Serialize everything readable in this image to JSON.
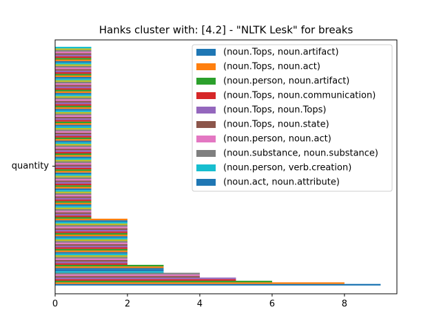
{
  "chart_data": {
    "type": "barh",
    "title": "Hanks cluster with: [4.2] - \"NLTK Lesk\" for breaks",
    "categories": [
      "quantity"
    ],
    "xlim": [
      0,
      9.45
    ],
    "xticks": [
      0,
      2,
      4,
      6,
      8
    ],
    "legend": "upper right",
    "colors": [
      "#1f77b4",
      "#ff7f0e",
      "#2ca02c",
      "#d62728",
      "#9467bd",
      "#8c564b",
      "#e377c2",
      "#7f7f7f",
      "#bcbd22",
      "#17becf"
    ],
    "series": [
      {
        "name": "(noun.Tops, noun.artifact)",
        "color": "#1f77b4",
        "values": [
          9
        ]
      },
      {
        "name": "(noun.Tops, noun.act)",
        "color": "#ff7f0e",
        "values": [
          8
        ]
      },
      {
        "name": "(noun.person, noun.artifact)",
        "color": "#2ca02c",
        "values": [
          6
        ]
      },
      {
        "name": "(noun.Tops, noun.communication)",
        "color": "#d62728",
        "values": [
          5
        ]
      },
      {
        "name": "(noun.Tops, noun.Tops)",
        "color": "#9467bd",
        "values": [
          5
        ]
      },
      {
        "name": "(noun.Tops, noun.state)",
        "color": "#8c564b",
        "values": [
          4
        ]
      },
      {
        "name": "(noun.person, noun.act)",
        "color": "#e377c2",
        "values": [
          4
        ]
      },
      {
        "name": "(noun.substance, noun.substance)",
        "color": "#7f7f7f",
        "values": [
          4
        ]
      },
      {
        "name": "(noun.person, verb.creation)",
        "color": "#17becf",
        "values": [
          3
        ]
      },
      {
        "name": "(noun.act, noun.attribute)",
        "color": "#1f77b4",
        "values": [
          3
        ]
      },
      {
        "values": [
          3
        ]
      },
      {
        "values": [
          3
        ]
      },
      {
        "values": [
          3
        ]
      },
      {
        "values": [
          2
        ]
      },
      {
        "values": [
          2
        ]
      },
      {
        "values": [
          2
        ]
      },
      {
        "values": [
          2
        ]
      },
      {
        "values": [
          2
        ]
      },
      {
        "values": [
          2
        ]
      },
      {
        "values": [
          2
        ]
      },
      {
        "values": [
          2
        ]
      },
      {
        "values": [
          2
        ]
      },
      {
        "values": [
          2
        ]
      },
      {
        "values": [
          2
        ]
      },
      {
        "values": [
          2
        ]
      },
      {
        "values": [
          2
        ]
      },
      {
        "values": [
          2
        ]
      },
      {
        "values": [
          2
        ]
      },
      {
        "values": [
          2
        ]
      },
      {
        "values": [
          2
        ]
      },
      {
        "values": [
          2
        ]
      },
      {
        "values": [
          2
        ]
      },
      {
        "values": [
          2
        ]
      },
      {
        "values": [
          2
        ]
      },
      {
        "values": [
          2
        ]
      },
      {
        "values": [
          2
        ]
      },
      {
        "values": [
          2
        ]
      },
      {
        "values": [
          2
        ]
      },
      {
        "values": [
          2
        ]
      },
      {
        "values": [
          2
        ]
      },
      {
        "values": [
          2
        ]
      },
      {
        "values": [
          2
        ]
      },
      {
        "values": [
          1
        ]
      },
      {
        "values": [
          1
        ]
      },
      {
        "values": [
          1
        ]
      },
      {
        "values": [
          1
        ]
      },
      {
        "values": [
          1
        ]
      },
      {
        "values": [
          1
        ]
      },
      {
        "values": [
          1
        ]
      },
      {
        "values": [
          1
        ]
      },
      {
        "values": [
          1
        ]
      },
      {
        "values": [
          1
        ]
      },
      {
        "values": [
          1
        ]
      },
      {
        "values": [
          1
        ]
      },
      {
        "values": [
          1
        ]
      },
      {
        "values": [
          1
        ]
      },
      {
        "values": [
          1
        ]
      },
      {
        "values": [
          1
        ]
      },
      {
        "values": [
          1
        ]
      },
      {
        "values": [
          1
        ]
      },
      {
        "values": [
          1
        ]
      },
      {
        "values": [
          1
        ]
      },
      {
        "values": [
          1
        ]
      },
      {
        "values": [
          1
        ]
      },
      {
        "values": [
          1
        ]
      },
      {
        "values": [
          1
        ]
      },
      {
        "values": [
          1
        ]
      },
      {
        "values": [
          1
        ]
      },
      {
        "values": [
          1
        ]
      },
      {
        "values": [
          1
        ]
      },
      {
        "values": [
          1
        ]
      },
      {
        "values": [
          1
        ]
      },
      {
        "values": [
          1
        ]
      },
      {
        "values": [
          1
        ]
      },
      {
        "values": [
          1
        ]
      },
      {
        "values": [
          1
        ]
      },
      {
        "values": [
          1
        ]
      },
      {
        "values": [
          1
        ]
      },
      {
        "values": [
          1
        ]
      },
      {
        "values": [
          1
        ]
      },
      {
        "values": [
          1
        ]
      },
      {
        "values": [
          1
        ]
      },
      {
        "values": [
          1
        ]
      },
      {
        "values": [
          1
        ]
      },
      {
        "values": [
          1
        ]
      },
      {
        "values": [
          1
        ]
      },
      {
        "values": [
          1
        ]
      },
      {
        "values": [
          1
        ]
      },
      {
        "values": [
          1
        ]
      },
      {
        "values": [
          1
        ]
      },
      {
        "values": [
          1
        ]
      },
      {
        "values": [
          1
        ]
      },
      {
        "values": [
          1
        ]
      },
      {
        "values": [
          1
        ]
      },
      {
        "values": [
          1
        ]
      },
      {
        "values": [
          1
        ]
      },
      {
        "values": [
          1
        ]
      },
      {
        "values": [
          1
        ]
      },
      {
        "values": [
          1
        ]
      },
      {
        "values": [
          1
        ]
      },
      {
        "values": [
          1
        ]
      },
      {
        "values": [
          1
        ]
      },
      {
        "values": [
          1
        ]
      },
      {
        "values": [
          1
        ]
      },
      {
        "values": [
          1
        ]
      },
      {
        "values": [
          1
        ]
      },
      {
        "values": [
          1
        ]
      },
      {
        "values": [
          1
        ]
      },
      {
        "values": [
          1
        ]
      },
      {
        "values": [
          1
        ]
      },
      {
        "values": [
          1
        ]
      },
      {
        "values": [
          1
        ]
      },
      {
        "values": [
          1
        ]
      },
      {
        "values": [
          1
        ]
      },
      {
        "values": [
          1
        ]
      },
      {
        "values": [
          1
        ]
      },
      {
        "values": [
          1
        ]
      },
      {
        "values": [
          1
        ]
      },
      {
        "values": [
          1
        ]
      },
      {
        "values": [
          1
        ]
      },
      {
        "values": [
          1
        ]
      },
      {
        "values": [
          1
        ]
      },
      {
        "values": [
          1
        ]
      },
      {
        "values": [
          1
        ]
      },
      {
        "values": [
          1
        ]
      },
      {
        "values": [
          1
        ]
      },
      {
        "values": [
          1
        ]
      },
      {
        "values": [
          1
        ]
      },
      {
        "values": [
          1
        ]
      },
      {
        "values": [
          1
        ]
      },
      {
        "values": [
          1
        ]
      },
      {
        "values": [
          1
        ]
      },
      {
        "values": [
          1
        ]
      },
      {
        "values": [
          1
        ]
      },
      {
        "values": [
          1
        ]
      },
      {
        "values": [
          1
        ]
      },
      {
        "values": [
          1
        ]
      },
      {
        "values": [
          1
        ]
      },
      {
        "values": [
          1
        ]
      },
      {
        "values": [
          1
        ]
      },
      {
        "values": [
          1
        ]
      },
      {
        "values": [
          1
        ]
      },
      {
        "values": [
          1
        ]
      },
      {
        "values": [
          1
        ]
      },
      {
        "values": [
          1
        ]
      },
      {
        "values": [
          1
        ]
      },
      {
        "values": [
          1
        ]
      },
      {
        "values": [
          1
        ]
      },
      {
        "values": [
          1
        ]
      },
      {
        "values": [
          1
        ]
      }
    ]
  }
}
